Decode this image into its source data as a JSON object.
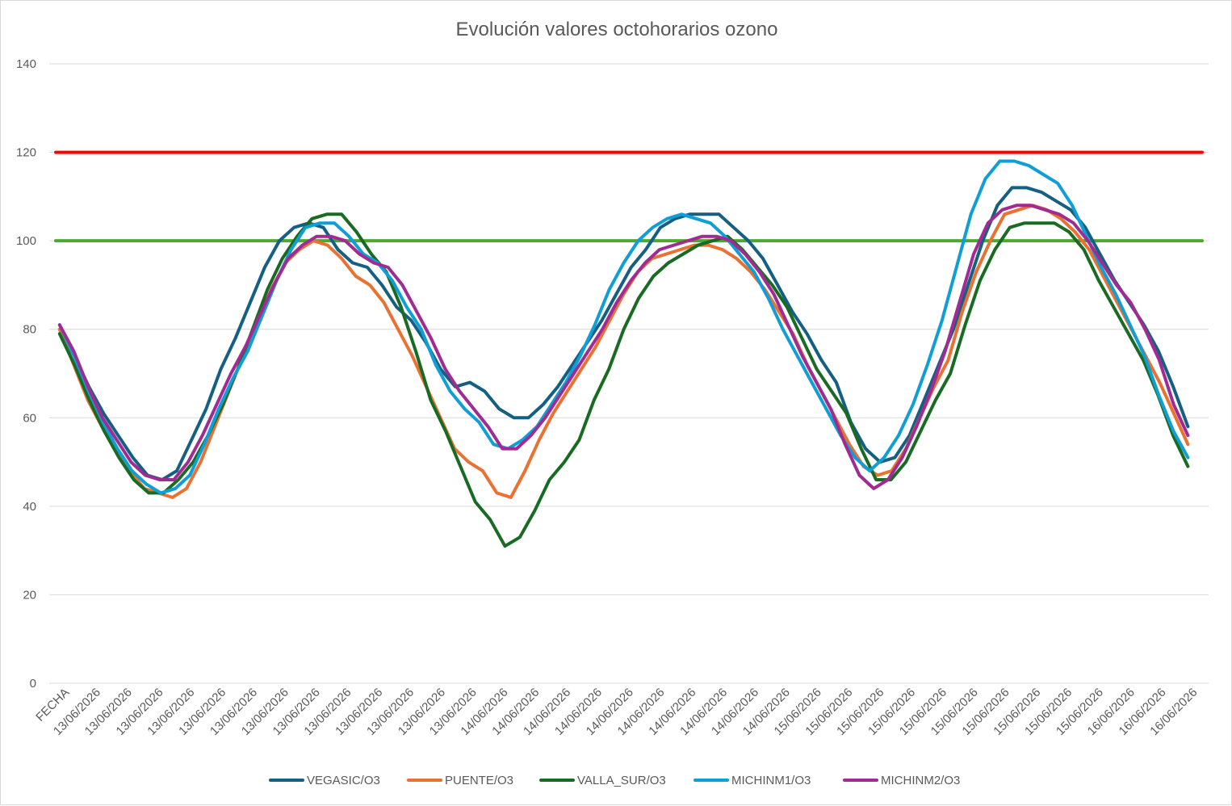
{
  "chart_data": {
    "type": "line",
    "title": "Evolución valores octohorarios ozono",
    "xlabel": "",
    "ylabel": "",
    "ylim": [
      0,
      140
    ],
    "yticks": [
      0,
      20,
      40,
      60,
      80,
      100,
      120,
      140
    ],
    "grid": true,
    "legend_position": "bottom",
    "x_tick_labels": [
      "FECHA",
      "13/06/2026",
      "13/06/2026",
      "13/06/2026",
      "13/06/2026",
      "13/06/2026",
      "13/06/2026",
      "13/06/2026",
      "13/06/2026",
      "13/06/2026",
      "13/06/2026",
      "13/06/2026",
      "13/06/2026",
      "13/06/2026",
      "14/06/2026",
      "14/06/2026",
      "14/06/2026",
      "14/06/2026",
      "14/06/2026",
      "14/06/2026",
      "14/06/2026",
      "14/06/2026",
      "14/06/2026",
      "14/06/2026",
      "15/06/2026",
      "15/06/2026",
      "15/06/2026",
      "15/06/2026",
      "15/06/2026",
      "15/06/2026",
      "15/06/2026",
      "15/06/2026",
      "15/06/2026",
      "15/06/2026",
      "16/06/2026",
      "16/06/2026",
      "16/06/2026"
    ],
    "x_count": 56,
    "reference_lines": [
      {
        "value": 120,
        "color": "#ff0000"
      },
      {
        "value": 100,
        "color": "#4ea72e"
      }
    ],
    "series": [
      {
        "name": "VEGASIC/O3",
        "color": "#156082",
        "values": [
          80,
          74,
          67,
          61,
          56,
          51,
          47,
          46,
          48,
          55,
          62,
          71,
          78,
          86,
          94,
          100,
          103,
          104,
          103,
          98,
          95,
          94,
          90,
          85,
          82,
          77,
          71,
          67,
          68,
          66,
          62,
          60,
          60,
          63,
          67,
          72,
          77,
          82,
          88,
          94,
          98,
          103,
          105,
          106,
          106,
          106,
          103,
          100,
          96,
          90,
          84,
          79,
          73,
          68,
          59,
          53,
          50,
          51,
          56,
          64,
          72,
          80,
          90,
          100,
          108,
          112,
          112,
          111,
          109,
          107,
          103,
          97,
          91,
          86,
          81,
          75,
          67,
          58
        ]
      },
      {
        "name": "PUENTE/O3",
        "color": "#e97132",
        "values": [
          80,
          72,
          64,
          58,
          53,
          48,
          44,
          43,
          42,
          44,
          50,
          58,
          66,
          74,
          81,
          89,
          95,
          98,
          100,
          99,
          96,
          92,
          90,
          86,
          80,
          74,
          67,
          60,
          53,
          50,
          48,
          43,
          42,
          48,
          55,
          61,
          66,
          71,
          76,
          82,
          88,
          93,
          96,
          97,
          98,
          99,
          99,
          98,
          96,
          93,
          89,
          84,
          79,
          72,
          66,
          60,
          54,
          49,
          47,
          48,
          53,
          60,
          67,
          73,
          84,
          93,
          100,
          106,
          107,
          108,
          107,
          105,
          102,
          98,
          92,
          86,
          80,
          74,
          68,
          61,
          54
        ]
      },
      {
        "name": "VALLA_SUR/O3",
        "color": "#196b24",
        "values": [
          79,
          72,
          64,
          57,
          51,
          46,
          43,
          43,
          46,
          50,
          56,
          63,
          71,
          80,
          89,
          96,
          101,
          105,
          106,
          106,
          102,
          97,
          93,
          85,
          75,
          64,
          57,
          49,
          41,
          37,
          31,
          33,
          39,
          46,
          50,
          55,
          64,
          71,
          80,
          87,
          92,
          95,
          97,
          99,
          100,
          101,
          98,
          94,
          90,
          85,
          78,
          71,
          66,
          61,
          53,
          46,
          46,
          50,
          57,
          64,
          70,
          81,
          91,
          98,
          103,
          104,
          104,
          104,
          102,
          98,
          91,
          85,
          79,
          73,
          65,
          56,
          49
        ]
      },
      {
        "name": "MICHINM1/O3",
        "color": "#0f9ed5",
        "values": [
          81,
          74,
          66,
          59,
          53,
          48,
          45,
          43,
          44,
          47,
          54,
          62,
          69,
          75,
          83,
          91,
          98,
          103,
          104,
          104,
          101,
          97,
          95,
          91,
          85,
          80,
          72,
          66,
          62,
          59,
          54,
          53,
          55,
          58,
          63,
          68,
          74,
          81,
          89,
          95,
          100,
          103,
          105,
          106,
          105,
          104,
          101,
          97,
          93,
          87,
          80,
          74,
          68,
          62,
          56,
          51,
          48,
          51,
          56,
          63,
          72,
          82,
          94,
          106,
          114,
          118,
          118,
          117,
          115,
          113,
          108,
          101,
          94,
          88,
          81,
          74,
          65,
          57,
          51
        ]
      },
      {
        "name": "MICHINM2/O3",
        "color": "#a02b93",
        "values": [
          81,
          75,
          67,
          60,
          55,
          50,
          47,
          46,
          46,
          50,
          56,
          63,
          70,
          76,
          83,
          90,
          96,
          99,
          101,
          101,
          100,
          97,
          95,
          94,
          90,
          84,
          78,
          71,
          66,
          62,
          58,
          53,
          53,
          56,
          60,
          65,
          70,
          75,
          80,
          86,
          91,
          95,
          98,
          99,
          100,
          101,
          101,
          100,
          97,
          93,
          88,
          81,
          74,
          68,
          62,
          54,
          47,
          44,
          46,
          51,
          58,
          66,
          75,
          86,
          97,
          104,
          107,
          108,
          108,
          107,
          106,
          104,
          100,
          95,
          90,
          86,
          80,
          73,
          63,
          56
        ]
      }
    ]
  }
}
